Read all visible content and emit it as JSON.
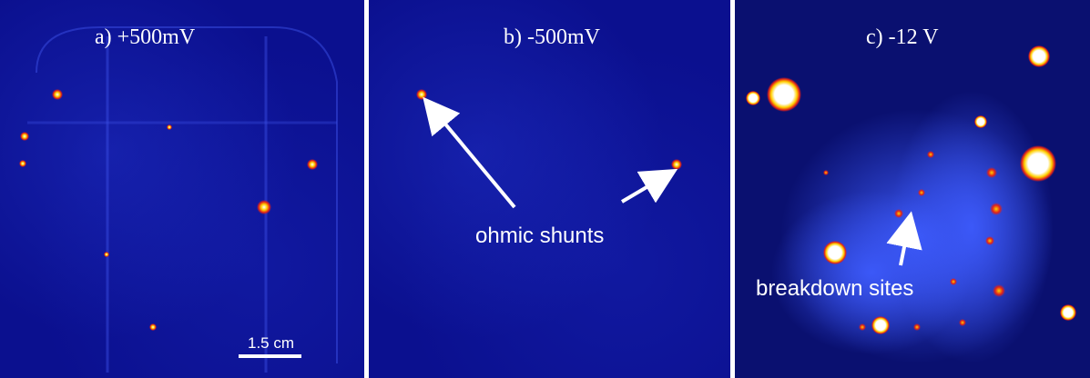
{
  "panels": [
    {
      "label": "a) +500mV",
      "scale_bar": "1.5 cm"
    },
    {
      "label": "b) -500mV",
      "annotation": "ohmic shunts"
    },
    {
      "label": "c) -12 V",
      "annotation": "breakdown sites"
    }
  ],
  "colors": {
    "background": "#0b108f",
    "hotspot_core": "#ffffff",
    "hotspot_mid": "#ffd000",
    "hotspot_edge": "#e0201a",
    "panel_divider": "#ffffff"
  }
}
